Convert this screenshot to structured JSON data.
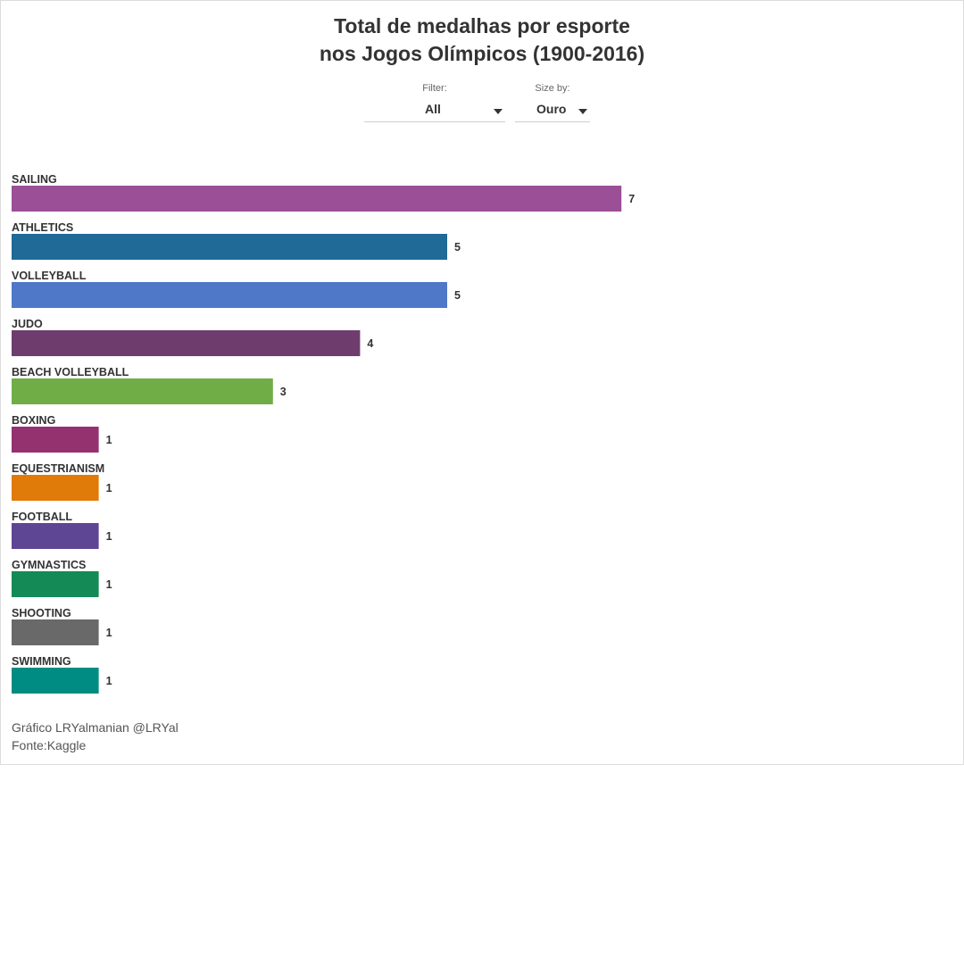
{
  "header": {
    "title_line1": "Total de medalhas por esporte",
    "title_line2": "nos Jogos Olímpicos (1900-2016)"
  },
  "controls": {
    "filter": {
      "label": "Filter:",
      "value": "All"
    },
    "size_by": {
      "label": "Size by:",
      "value": "Ouro"
    }
  },
  "footer": {
    "credit": "Gráfico LRYalmanian @LRYal",
    "source": "Fonte:Kaggle"
  },
  "chart_data": {
    "type": "bar",
    "orientation": "horizontal",
    "title": "Total de medalhas por esporte nos Jogos Olímpicos (1900-2016)",
    "categories": [
      "SAILING",
      "ATHLETICS",
      "VOLLEYBALL",
      "JUDO",
      "BEACH VOLLEYBALL",
      "BOXING",
      "EQUESTRIANISM",
      "FOOTBALL",
      "GYMNASTICS",
      "SHOOTING",
      "SWIMMING"
    ],
    "values": [
      7,
      5,
      5,
      4,
      3,
      1,
      1,
      1,
      1,
      1,
      1
    ],
    "colors": [
      "#9b4f96",
      "#1f6a96",
      "#4f78c8",
      "#6e3d6e",
      "#70ad47",
      "#943270",
      "#e07b0a",
      "#5e4694",
      "#148a57",
      "#696969",
      "#008c82"
    ],
    "xlim": [
      0,
      7
    ],
    "grid": false,
    "legend": "none",
    "data_labels": true
  }
}
